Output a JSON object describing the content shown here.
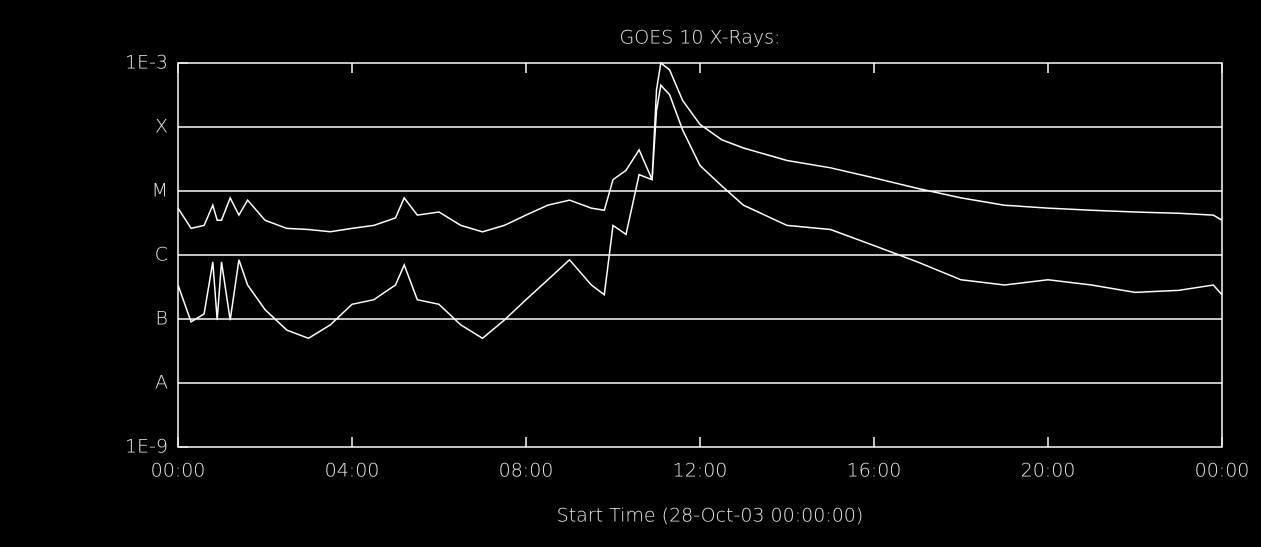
{
  "chart_data": {
    "type": "line",
    "title": "GOES 10 X-Rays:",
    "x_label": "Start Time (28-Oct-03 00:00:00)",
    "log_y": true,
    "grid": true,
    "xlim": [
      0,
      24
    ],
    "xticks": [
      {
        "value": 0,
        "label": "00:00"
      },
      {
        "value": 4,
        "label": "04:00"
      },
      {
        "value": 8,
        "label": "08:00"
      },
      {
        "value": 12,
        "label": "12:00"
      },
      {
        "value": 16,
        "label": "16:00"
      },
      {
        "value": 20,
        "label": "20:00"
      },
      {
        "value": 24,
        "label": "00:00"
      }
    ],
    "ylim": [
      1e-09,
      0.001
    ],
    "yticks": [
      {
        "value": 0.001,
        "label": "1E-3"
      },
      {
        "value": 0.0001,
        "label": "X"
      },
      {
        "value": 1e-05,
        "label": "M"
      },
      {
        "value": 1e-06,
        "label": "C"
      },
      {
        "value": 1e-07,
        "label": "B"
      },
      {
        "value": 1e-08,
        "label": "A"
      },
      {
        "value": 1e-09,
        "label": "1E-9"
      }
    ],
    "x": [
      0,
      0.3,
      0.6,
      0.8,
      0.9,
      1.0,
      1.2,
      1.4,
      1.6,
      2.0,
      2.5,
      3.0,
      3.5,
      4.0,
      4.5,
      5.0,
      5.2,
      5.5,
      6.0,
      6.5,
      7.0,
      7.5,
      8.0,
      8.5,
      9.0,
      9.5,
      9.8,
      10.0,
      10.3,
      10.6,
      10.9,
      11.0,
      11.1,
      11.3,
      11.6,
      12.0,
      12.5,
      13.0,
      14.0,
      15.0,
      16.0,
      17.0,
      18.0,
      19.0,
      20.0,
      21.0,
      22.0,
      23.0,
      23.8,
      24.0
    ],
    "series": [
      {
        "color": "#ffffff",
        "values": [
          5.4e-06,
          2.6e-06,
          2.9e-06,
          6e-06,
          3.5e-06,
          3.5e-06,
          7.8e-06,
          4.2e-06,
          7.2e-06,
          3.5e-06,
          2.6e-06,
          2.5e-06,
          2.3e-06,
          2.6e-06,
          2.9e-06,
          3.8e-06,
          7.8e-06,
          4.2e-06,
          4.7e-06,
          2.9e-06,
          2.3e-06,
          2.9e-06,
          4.2e-06,
          6e-06,
          7.2e-06,
          5.4e-06,
          5e-06,
          1.5e-05,
          2.1e-05,
          4.4e-05,
          1.5e-05,
          0.00038,
          0.001,
          0.00078,
          0.00026,
          0.00011,
          6.3e-05,
          4.7e-05,
          3e-05,
          2.3e-05,
          1.6e-05,
          1.1e-05,
          7.8e-06,
          6e-06,
          5.4e-06,
          5e-06,
          4.7e-06,
          4.5e-06,
          4.2e-06,
          3.5e-06
        ]
      },
      {
        "color": "#ffffff",
        "values": [
          3.4e-07,
          9e-08,
          1.2e-07,
          7.8e-07,
          9.6e-08,
          7.8e-07,
          9.6e-08,
          8.4e-07,
          3.4e-07,
          1.4e-07,
          6.7e-08,
          5e-08,
          8.1e-08,
          1.7e-07,
          2e-07,
          3.4e-07,
          7e-07,
          2e-07,
          1.7e-07,
          8.1e-08,
          5e-08,
          9.6e-08,
          2e-07,
          4.1e-07,
          8.4e-07,
          3.4e-07,
          2.4e-07,
          2.9e-06,
          2.1e-06,
          1.8e-05,
          1.5e-05,
          0.00018,
          0.00045,
          0.00032,
          9e-05,
          2.5e-05,
          1.2e-05,
          6e-06,
          2.9e-06,
          2.5e-06,
          1.4e-06,
          7.8e-07,
          4.1e-07,
          3.4e-07,
          4.1e-07,
          3.4e-07,
          2.6e-07,
          2.8e-07,
          3.4e-07,
          2.4e-07
        ]
      }
    ]
  }
}
